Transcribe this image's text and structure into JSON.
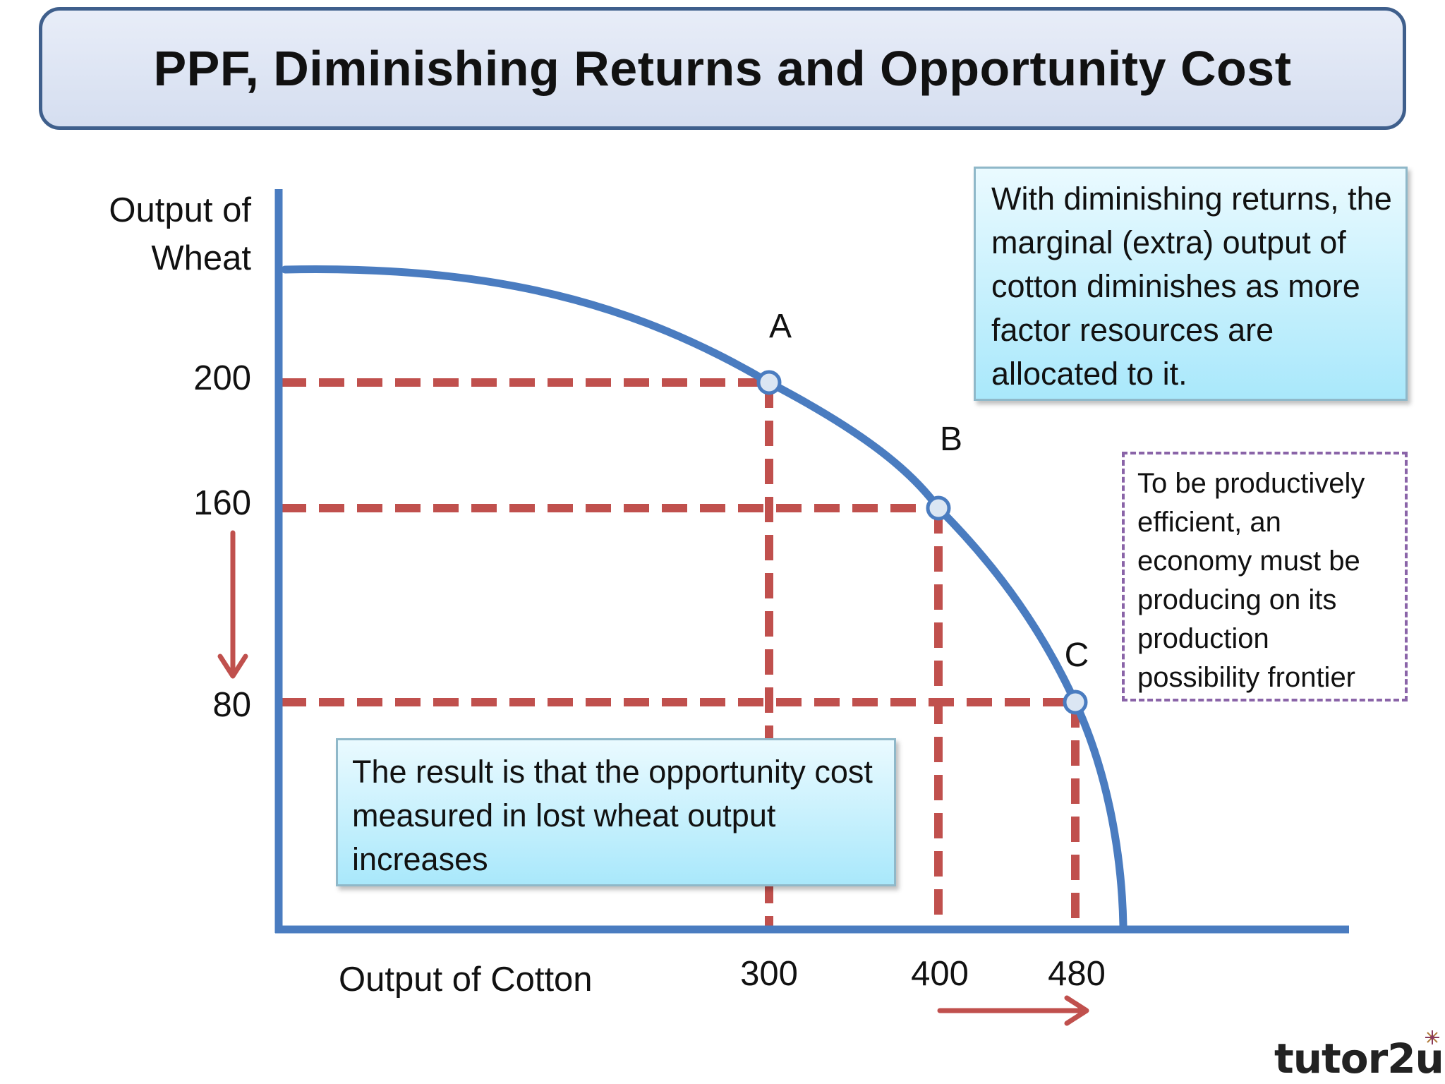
{
  "title": "PPF, Diminishing Returns and Opportunity Cost",
  "y_axis": {
    "label_line1": "Output of",
    "label_line2": "Wheat",
    "ticks": [
      "200",
      "160",
      "80"
    ]
  },
  "x_axis": {
    "label": "Output of Cotton",
    "ticks": [
      "300",
      "400",
      "480"
    ]
  },
  "points": [
    {
      "label": "A",
      "cotton": 300,
      "wheat": 200
    },
    {
      "label": "B",
      "cotton": 400,
      "wheat": 160
    },
    {
      "label": "C",
      "cotton": 480,
      "wheat": 80
    }
  ],
  "notes": {
    "diminishing": "With diminishing returns, the marginal (extra) output of cotton diminishes as more factor resources are allocated to it.",
    "result": "The result is that the opportunity cost measured in lost wheat output increases",
    "efficient": "To be productively efficient, an economy must be producing on its production possibility frontier"
  },
  "logo": "tutor2u",
  "colors": {
    "axis": "#4a7cc0",
    "curve": "#4a7cc0",
    "dashes": "#c0504d",
    "arrows": "#c0504d",
    "point_fill": "#dbe6f3",
    "banner_border": "#3f5f8c",
    "note_border_dashed": "#8a64a8"
  },
  "icons": [
    "down-arrow-icon",
    "right-arrow-icon",
    "logo-star-icon"
  ]
}
